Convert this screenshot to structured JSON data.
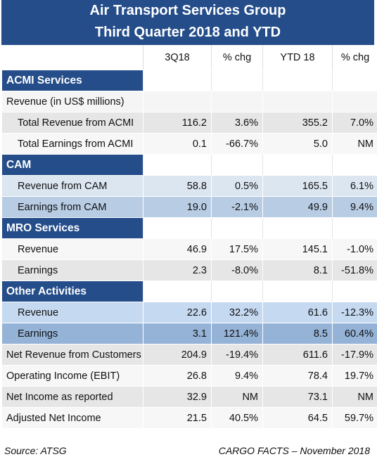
{
  "header": {
    "title": [
      "Air Transport Services Group",
      "Third  Quarter 2018 and YTD"
    ]
  },
  "table": {
    "columns": [
      "3Q18",
      "% chg",
      "YTD 18",
      "% chg"
    ],
    "rows": [
      {
        "label": "ACMI Services"
      },
      {
        "label": "Revenue (in US$ millions)"
      },
      {
        "label": "Total Revenue from ACMI",
        "cells": [
          "116.2",
          "3.6%",
          "355.2",
          "7.0%"
        ]
      },
      {
        "label": "Total Earnings from ACMI",
        "cells": [
          "0.1",
          "-66.7%",
          "5.0",
          "NM"
        ]
      },
      {
        "label": "CAM"
      },
      {
        "label": "Revenue from CAM",
        "cells": [
          "58.8",
          "0.5%",
          "165.5",
          "6.1%"
        ]
      },
      {
        "label": "Earnings from CAM",
        "cells": [
          "19.0",
          "-2.1%",
          "49.9",
          "9.4%"
        ]
      },
      {
        "label": "MRO Services"
      },
      {
        "label": "Revenue",
        "cells": [
          "46.9",
          "17.5%",
          "145.1",
          "-1.0%"
        ]
      },
      {
        "label": "Earnings",
        "cells": [
          "2.3",
          "-8.0%",
          "8.1",
          "-51.8%"
        ]
      },
      {
        "label": "Other Activities"
      },
      {
        "label": "Revenue",
        "cells": [
          "22.6",
          "32.2%",
          "61.6",
          "-12.3%"
        ]
      },
      {
        "label": "Earnings",
        "cells": [
          "3.1",
          "121.4%",
          "8.5",
          "60.4%"
        ]
      },
      {
        "label": "Net Revenue from Customers",
        "cells": [
          "204.9",
          "-19.4%",
          "611.6",
          "-17.9%"
        ]
      },
      {
        "label": "Operating Income (EBIT)",
        "cells": [
          "26.8",
          "9.4%",
          "78.4",
          "19.7%"
        ]
      },
      {
        "label": "Net Income as reported",
        "cells": [
          "32.9",
          "NM",
          "73.1",
          "NM"
        ]
      },
      {
        "label": "Adjusted Net Income",
        "cells": [
          "21.5",
          "40.5%",
          "64.5",
          "59.7%"
        ]
      }
    ]
  },
  "footer": {
    "source": "Source: ATSG",
    "credit": "CARGO FACTS – November 2018"
  }
}
